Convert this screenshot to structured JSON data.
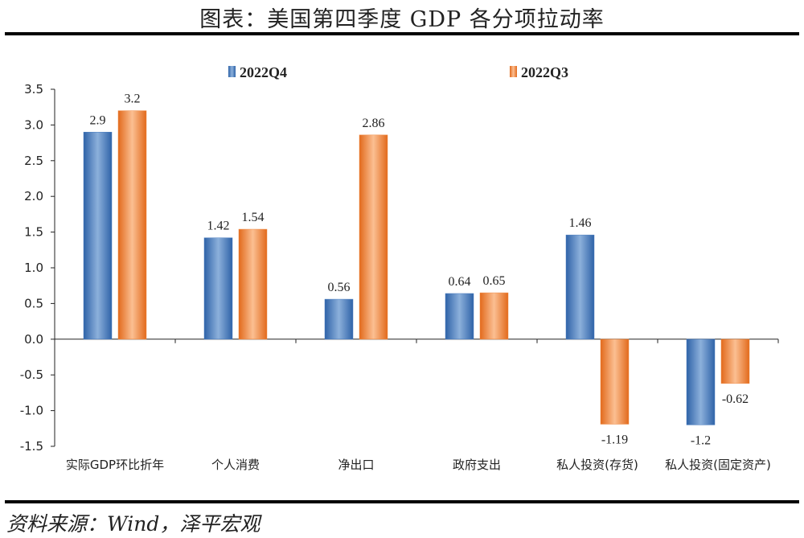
{
  "header": {
    "title": "图表：美国第四季度 GDP 各分项拉动率"
  },
  "footer": {
    "source": "资料来源：Wind，泽平宏观"
  },
  "colors": {
    "q4": "#4a7dbf",
    "q3": "#f08a43",
    "axis": "#222222"
  },
  "chart_data": {
    "type": "bar",
    "title": "",
    "xlabel": "",
    "ylabel": "",
    "ylim": [
      -1.5,
      3.5
    ],
    "yticks": [
      3.5,
      3.0,
      2.5,
      2.0,
      1.5,
      1.0,
      0.5,
      0.0,
      -0.5,
      -1.0,
      -1.5
    ],
    "ytick_labels": [
      "3.5",
      "3.0",
      "2.5",
      "2.0",
      "1.5",
      "1.0",
      "0.5",
      "0.0",
      "-0.5",
      "-1.0",
      "-1.5"
    ],
    "legend_position": "top",
    "categories": [
      "实际GDP环比折年",
      "个人消费",
      "净出口",
      "政府支出",
      "私人投资(存货)",
      "私人投资(固定资产)"
    ],
    "series": [
      {
        "name": "2022Q4",
        "values": [
          2.9,
          1.42,
          0.56,
          0.64,
          1.46,
          -1.2
        ],
        "labels": [
          "2.9",
          "1.42",
          "0.56",
          "0.64",
          "1.46",
          "-1.2"
        ]
      },
      {
        "name": "2022Q3",
        "values": [
          3.2,
          1.54,
          2.86,
          0.65,
          -1.19,
          -0.62
        ],
        "labels": [
          "3.2",
          "1.54",
          "2.86",
          "0.65",
          "-1.19",
          "-0.62"
        ]
      }
    ]
  }
}
